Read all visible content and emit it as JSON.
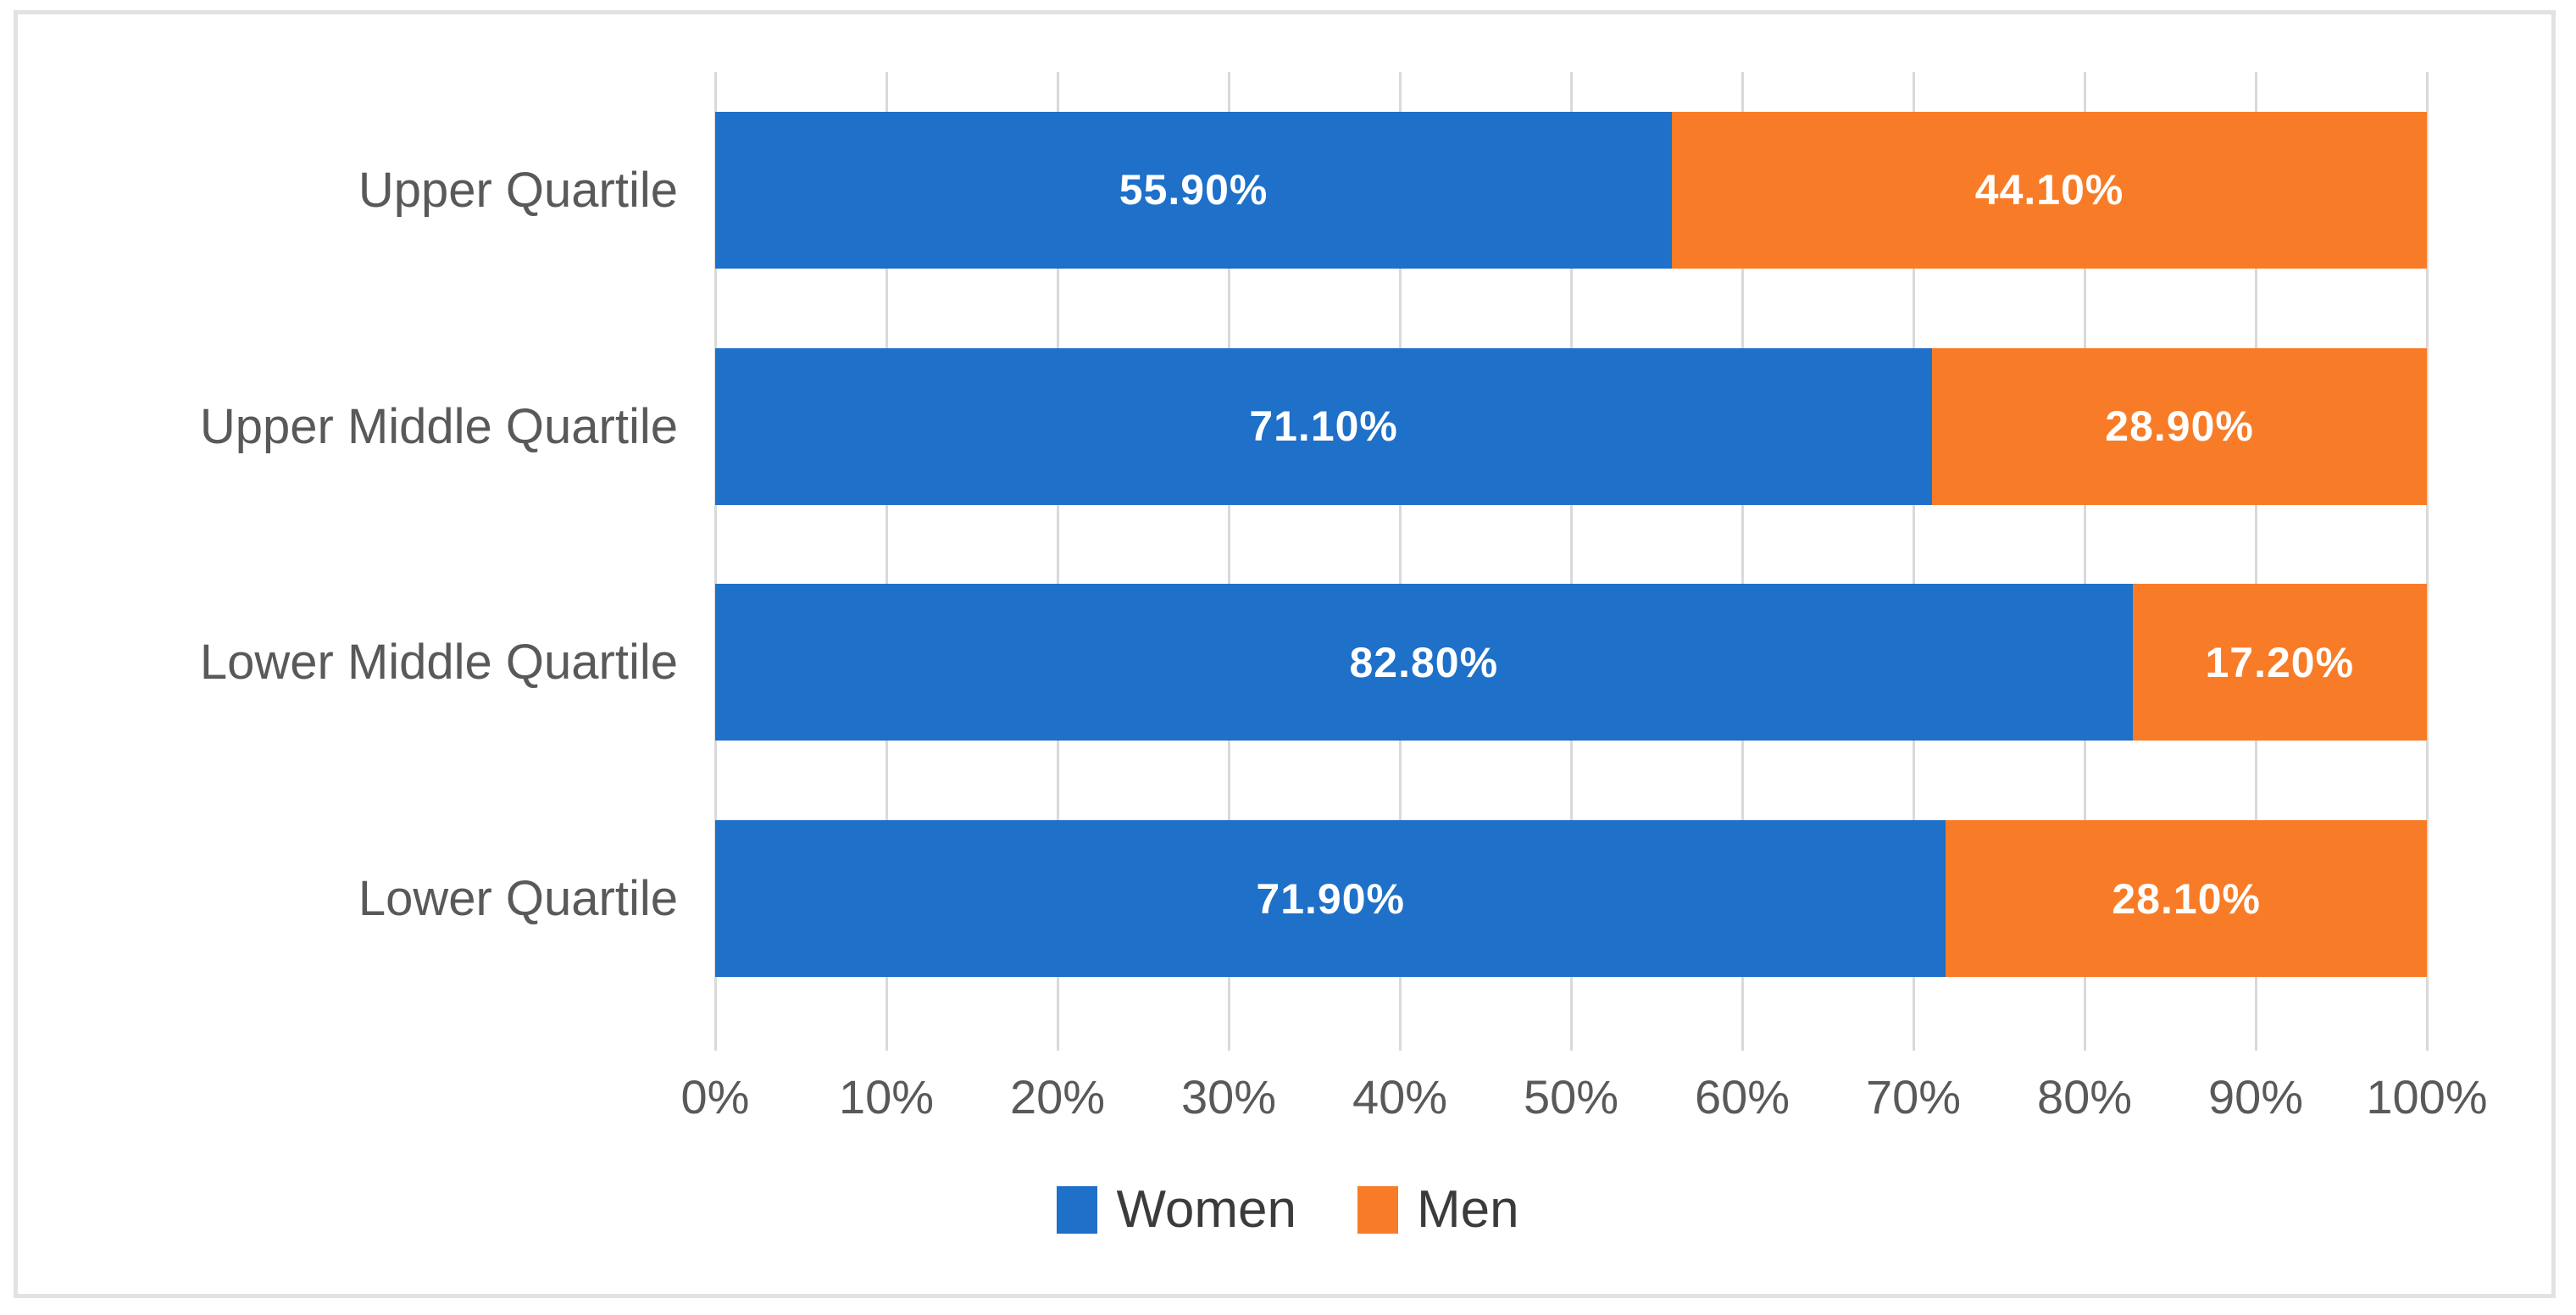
{
  "chart_data": {
    "type": "bar",
    "orientation": "horizontal",
    "stacked": true,
    "title": "",
    "categories": [
      "Upper Quartile",
      "Upper Middle Quartile",
      "Lower Middle Quartile",
      "Lower Quartile"
    ],
    "series": [
      {
        "name": "Women",
        "color": "#1e70c8",
        "values": [
          55.9,
          71.1,
          82.8,
          71.9
        ],
        "data_labels": [
          "55.90%",
          "71.10%",
          "82.80%",
          "71.90%"
        ]
      },
      {
        "name": "Men",
        "color": "#f87c28",
        "values": [
          44.1,
          28.9,
          17.2,
          28.1
        ],
        "data_labels": [
          "44.10%",
          "28.90%",
          "17.20%",
          "28.10%"
        ]
      }
    ],
    "x_axis": {
      "min": 0,
      "max": 100,
      "tick_labels": [
        "0%",
        "10%",
        "20%",
        "30%",
        "40%",
        "50%",
        "60%",
        "70%",
        "80%",
        "90%",
        "100%"
      ],
      "grid": true
    },
    "legend": {
      "position": "bottom",
      "entries": [
        "Women",
        "Men"
      ]
    },
    "style": {
      "gridline_color": "#d9d9d9",
      "frame_border_color": "#e2e2e2",
      "axis_text_color": "#595959",
      "category_text_color": "#595959",
      "legend_text_color": "#3b3b3b",
      "data_label_color": "#ffffff"
    }
  }
}
